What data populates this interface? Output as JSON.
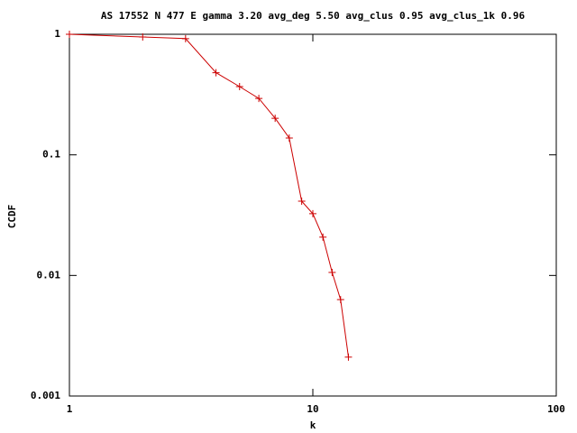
{
  "chart_data": {
    "type": "line",
    "title": "AS 17552 N 477 E gamma 3.20 avg_deg 5.50 avg_clus 0.95 avg_clus_1k 0.96",
    "xlabel": "k",
    "ylabel": "CCDF",
    "x": [
      1,
      2,
      3,
      4,
      5,
      6,
      7,
      8,
      9,
      10,
      11,
      12,
      13,
      14
    ],
    "values": [
      1,
      0.95,
      0.92,
      0.48,
      0.368,
      0.294,
      0.201,
      0.138,
      0.0413,
      0.0325,
      0.0208,
      0.0106,
      0.0063,
      0.0021
    ],
    "color": "#cc0000",
    "xlim": [
      1,
      100
    ],
    "xticks": [
      1,
      10,
      100
    ],
    "ylim": [
      0.001,
      1
    ],
    "yticks": [
      0.001,
      0.01,
      0.1,
      1
    ],
    "xscale": "log",
    "yscale": "log",
    "grid": false
  }
}
